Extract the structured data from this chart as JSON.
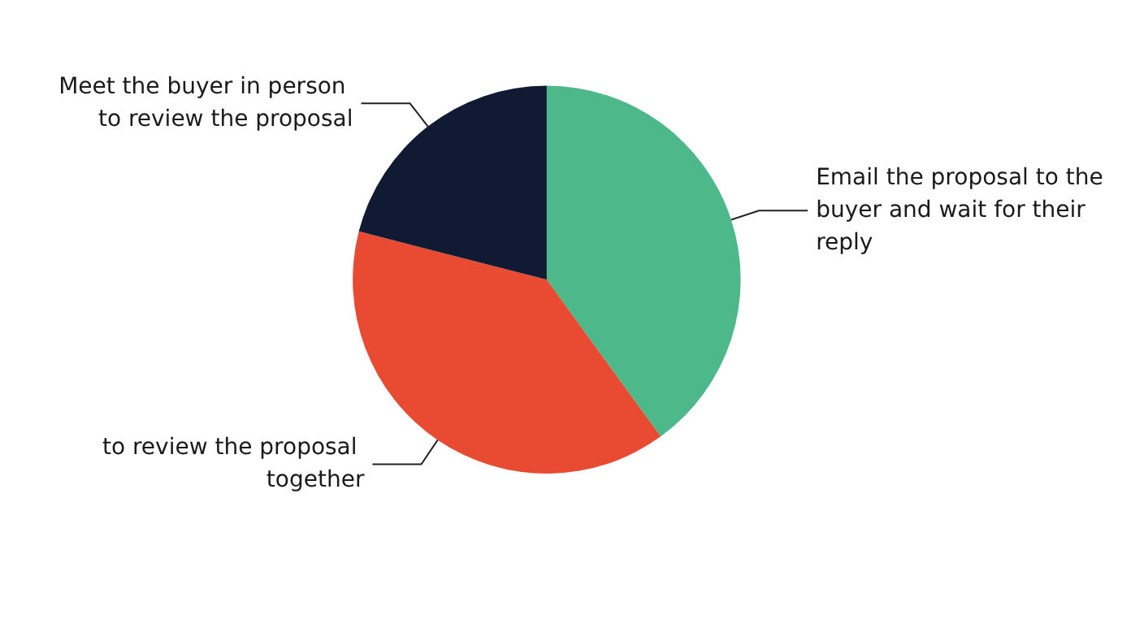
{
  "chart_data": {
    "type": "pie",
    "categories": [
      "Email the proposal to the buyer and wait for their reply",
      "to review the proposal together",
      "Meet the buyer in person to review the proposal"
    ],
    "values": [
      40,
      39,
      21
    ],
    "colors": [
      "#4db88a",
      "#e84a32",
      "#111a33"
    ],
    "legend": false
  }
}
